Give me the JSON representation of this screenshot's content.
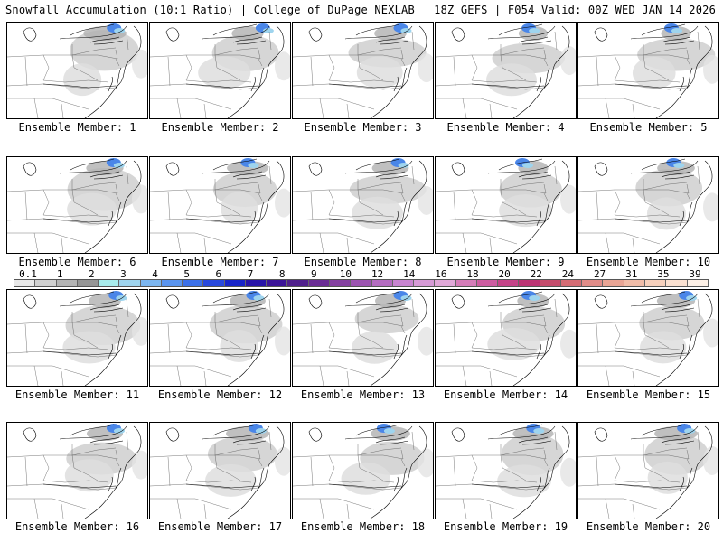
{
  "header": {
    "title": "Snowfall Accumulation (10:1 Ratio) | College of DuPage NEXLAB",
    "run_info": "18Z GEFS | F054 Valid: 00Z WED JAN 14 2026"
  },
  "legend": {
    "labels": [
      "0.1",
      "1",
      "2",
      "3",
      "4",
      "5",
      "6",
      "7",
      "8",
      "9",
      "10",
      "12",
      "14",
      "16",
      "18",
      "20",
      "22",
      "24",
      "27",
      "31",
      "35",
      "39"
    ],
    "colors": [
      "#e8e8e8",
      "#d0d0d0",
      "#b4b4b4",
      "#969696",
      "#a8ecec",
      "#9ed4ee",
      "#7cb6f0",
      "#5a94ee",
      "#3c70e8",
      "#2848dc",
      "#1824c8",
      "#2814a8",
      "#3c1498",
      "#50208c",
      "#6a2c94",
      "#8440a0",
      "#9c54b0",
      "#b46cc0",
      "#c884d0",
      "#d69ad6",
      "#e0a8d8",
      "#d47cb8",
      "#cc5ca0",
      "#c44488",
      "#bc3474",
      "#c44c6c",
      "#d46c74",
      "#e08c88",
      "#e8a494",
      "#f0bca8",
      "#f6d0bc",
      "#fae0d0",
      "#fdf0e6"
    ]
  },
  "members": [
    {
      "caption": "Ensemble Member: 1"
    },
    {
      "caption": "Ensemble Member: 2"
    },
    {
      "caption": "Ensemble Member: 3"
    },
    {
      "caption": "Ensemble Member: 4"
    },
    {
      "caption": "Ensemble Member: 5"
    },
    {
      "caption": "Ensemble Member: 6"
    },
    {
      "caption": "Ensemble Member: 7"
    },
    {
      "caption": "Ensemble Member: 8"
    },
    {
      "caption": "Ensemble Member: 9"
    },
    {
      "caption": "Ensemble Member: 10"
    },
    {
      "caption": "Ensemble Member: 11"
    },
    {
      "caption": "Ensemble Member: 12"
    },
    {
      "caption": "Ensemble Member: 13"
    },
    {
      "caption": "Ensemble Member: 14"
    },
    {
      "caption": "Ensemble Member: 15"
    },
    {
      "caption": "Ensemble Member: 16"
    },
    {
      "caption": "Ensemble Member: 17"
    },
    {
      "caption": "Ensemble Member: 18"
    },
    {
      "caption": "Ensemble Member: 19"
    },
    {
      "caption": "Ensemble Member: 20"
    }
  ]
}
